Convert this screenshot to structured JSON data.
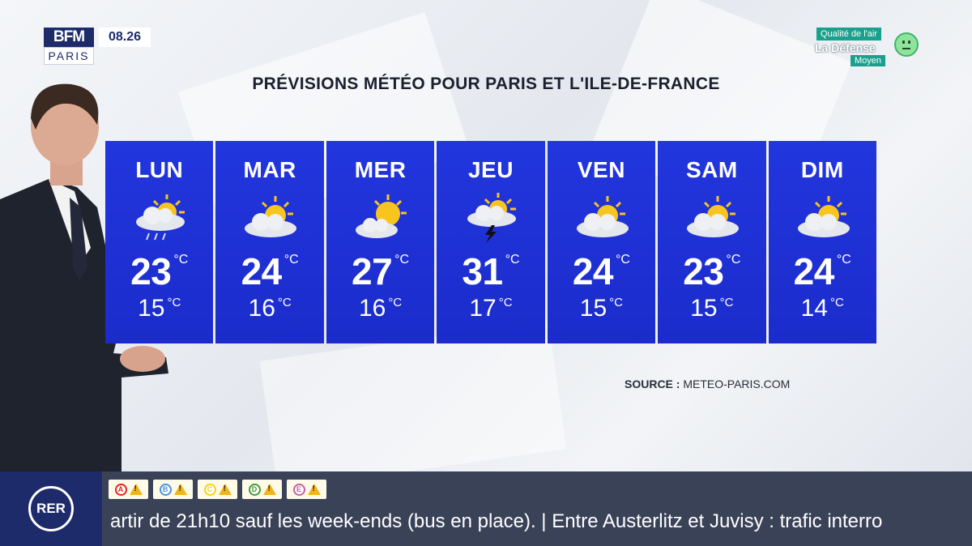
{
  "channel": {
    "logo_top": "BFM",
    "logo_bottom": "PARIS",
    "time": "08.26"
  },
  "air_quality": {
    "title": "Qualité de l'air",
    "place": "La Défense",
    "level": "Moyen"
  },
  "title": "PRÉVISIONS MÉTÉO POUR PARIS ET L'ILE-DE-FRANCE",
  "unit": "°C",
  "days": [
    {
      "name": "LUN",
      "max": "23",
      "min": "15",
      "icon": "sun-cloud-rain-icon"
    },
    {
      "name": "MAR",
      "max": "24",
      "min": "16",
      "icon": "sun-cloud-icon"
    },
    {
      "name": "MER",
      "max": "27",
      "min": "16",
      "icon": "sun-cloud-icon"
    },
    {
      "name": "JEU",
      "max": "31",
      "min": "17",
      "icon": "sun-cloud-storm-icon"
    },
    {
      "name": "VEN",
      "max": "24",
      "min": "15",
      "icon": "sun-cloud-icon"
    },
    {
      "name": "SAM",
      "max": "23",
      "min": "15",
      "icon": "sun-cloud-icon"
    },
    {
      "name": "DIM",
      "max": "24",
      "min": "14",
      "icon": "sun-cloud-icon"
    }
  ],
  "source": {
    "label": "SOURCE :",
    "value": "METEO-PARIS.COM"
  },
  "ticker": {
    "badge": "RER",
    "lines": [
      {
        "letter": "A",
        "color": "#e2231a"
      },
      {
        "letter": "B",
        "color": "#4b92db"
      },
      {
        "letter": "C",
        "color": "#f3d311"
      },
      {
        "letter": "D",
        "color": "#3f9c35"
      },
      {
        "letter": "E",
        "color": "#c560a2"
      }
    ],
    "text": "artir de 21h10 sauf les week-ends (bus en place). | Entre Austerlitz et Juvisy : trafic interro"
  }
}
